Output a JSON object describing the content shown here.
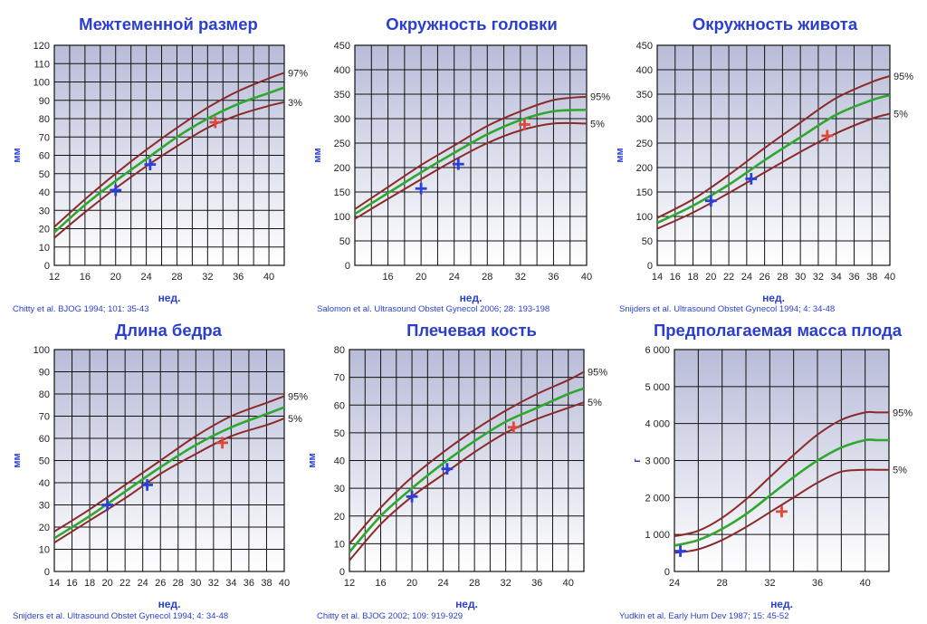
{
  "colors": {
    "title": "#2a3fd0",
    "axis_label": "#2a3fd0",
    "tick_text": "#222222",
    "grid": "#111111",
    "bg_top": "#b8bcd8",
    "bg_bottom": "#ffffff",
    "upper_curve": "#8b2a2a",
    "mid_curve": "#2fa82f",
    "lower_curve": "#8b2a2a",
    "marker_blue": "#2b3fe0",
    "marker_red": "#e0483a"
  },
  "chart_data": [
    {
      "type": "line",
      "title": "Межтеменной размер",
      "xlabel": "нед.",
      "ylabel": "мм",
      "citation": "Chitty et al. BJOG 1994; 101: 35-43",
      "xlim": [
        12,
        42
      ],
      "ylim": [
        0,
        120
      ],
      "x_ticks": [
        12,
        16,
        20,
        24,
        28,
        32,
        36,
        40
      ],
      "y_ticks": [
        0,
        10,
        20,
        30,
        40,
        50,
        60,
        70,
        80,
        90,
        100,
        110,
        120
      ],
      "grid": true,
      "series": [
        {
          "name": "97%",
          "role": "upper",
          "x": [
            12,
            16,
            20,
            24,
            28,
            32,
            36,
            40,
            42
          ],
          "y": [
            21,
            36,
            50,
            63,
            75,
            86,
            95,
            102,
            105
          ]
        },
        {
          "role": "mid",
          "x": [
            12,
            16,
            20,
            24,
            28,
            32,
            36,
            40,
            42
          ],
          "y": [
            18,
            33,
            46,
            58,
            70,
            80,
            88,
            94,
            97
          ]
        },
        {
          "name": "3%",
          "role": "lower",
          "x": [
            12,
            16,
            20,
            24,
            28,
            32,
            36,
            40,
            42
          ],
          "y": [
            15,
            29,
            42,
            54,
            65,
            75,
            82,
            87,
            89
          ]
        }
      ],
      "points": [
        {
          "x": 20,
          "y": 41,
          "color": "blue"
        },
        {
          "x": 24.5,
          "y": 55,
          "color": "blue"
        },
        {
          "x": 33,
          "y": 78,
          "color": "red"
        }
      ]
    },
    {
      "type": "line",
      "title": "Окружность головки",
      "xlabel": "нед.",
      "ylabel": "мм",
      "citation": "Salomon et al. Ultrasound Obstet Gynecol 2006; 28: 193-198",
      "xlim": [
        12,
        40
      ],
      "ylim": [
        0,
        450
      ],
      "x_ticks": [
        16,
        20,
        24,
        28,
        32,
        36,
        40
      ],
      "y_ticks": [
        0,
        50,
        100,
        150,
        200,
        250,
        300,
        350,
        400,
        450
      ],
      "grid": true,
      "series": [
        {
          "name": "95%",
          "role": "upper",
          "x": [
            12,
            16,
            20,
            24,
            28,
            32,
            36,
            40
          ],
          "y": [
            115,
            160,
            205,
            245,
            285,
            315,
            338,
            345
          ]
        },
        {
          "role": "mid",
          "x": [
            12,
            16,
            20,
            24,
            28,
            32,
            36,
            40
          ],
          "y": [
            105,
            148,
            190,
            230,
            268,
            297,
            315,
            318
          ]
        },
        {
          "name": "5%",
          "role": "lower",
          "x": [
            12,
            16,
            20,
            24,
            28,
            32,
            36,
            40
          ],
          "y": [
            95,
            136,
            176,
            215,
            250,
            276,
            290,
            290
          ]
        }
      ],
      "points": [
        {
          "x": 20,
          "y": 157,
          "color": "blue"
        },
        {
          "x": 24.5,
          "y": 207,
          "color": "blue"
        },
        {
          "x": 32.5,
          "y": 288,
          "color": "red"
        }
      ]
    },
    {
      "type": "line",
      "title": "Окружность живота",
      "xlabel": "нед.",
      "ylabel": "мм",
      "citation": "Snijders et al. Ultrasound Obstet Gynecol 1994; 4: 34-48",
      "xlim": [
        14,
        40
      ],
      "ylim": [
        0,
        450
      ],
      "x_ticks": [
        14,
        16,
        18,
        20,
        22,
        24,
        26,
        28,
        30,
        32,
        34,
        36,
        38,
        40
      ],
      "y_ticks": [
        0,
        50,
        100,
        150,
        200,
        250,
        300,
        350,
        400,
        450
      ],
      "grid": true,
      "series": [
        {
          "name": "95%",
          "role": "upper",
          "x": [
            14,
            18,
            22,
            26,
            30,
            34,
            38,
            40
          ],
          "y": [
            97,
            135,
            185,
            240,
            292,
            342,
            375,
            387
          ]
        },
        {
          "role": "mid",
          "x": [
            14,
            18,
            22,
            26,
            30,
            34,
            38,
            40
          ],
          "y": [
            87,
            122,
            165,
            215,
            262,
            308,
            338,
            348
          ]
        },
        {
          "name": "5%",
          "role": "lower",
          "x": [
            14,
            18,
            22,
            26,
            30,
            34,
            38,
            40
          ],
          "y": [
            75,
            108,
            148,
            190,
            232,
            270,
            300,
            310
          ]
        }
      ],
      "points": [
        {
          "x": 20,
          "y": 132,
          "color": "blue"
        },
        {
          "x": 24.5,
          "y": 177,
          "color": "blue"
        },
        {
          "x": 33,
          "y": 265,
          "color": "red"
        }
      ]
    },
    {
      "type": "line",
      "title": "Длина бедра",
      "xlabel": "нед.",
      "ylabel": "мм",
      "citation": "Snijders et al. Ultrasound Obstet Gynecol 1994; 4: 34-48",
      "xlim": [
        14,
        40
      ],
      "ylim": [
        0,
        100
      ],
      "x_ticks": [
        14,
        16,
        18,
        20,
        22,
        24,
        26,
        28,
        30,
        32,
        34,
        36,
        38,
        40
      ],
      "y_ticks": [
        0,
        10,
        20,
        30,
        40,
        50,
        60,
        70,
        80,
        90,
        100
      ],
      "grid": true,
      "series": [
        {
          "name": "95%",
          "role": "upper",
          "x": [
            14,
            18,
            22,
            26,
            30,
            34,
            38,
            40
          ],
          "y": [
            18,
            28,
            39,
            50,
            61,
            70,
            76,
            79
          ]
        },
        {
          "role": "mid",
          "x": [
            14,
            18,
            22,
            26,
            30,
            34,
            38,
            40
          ],
          "y": [
            15,
            25,
            36,
            47,
            57,
            65,
            71,
            74
          ]
        },
        {
          "name": "5%",
          "role": "lower",
          "x": [
            14,
            18,
            22,
            26,
            30,
            34,
            38,
            40
          ],
          "y": [
            13,
            23,
            33,
            44,
            53,
            61,
            66,
            69
          ]
        }
      ],
      "points": [
        {
          "x": 20,
          "y": 30,
          "color": "blue"
        },
        {
          "x": 24.5,
          "y": 39,
          "color": "blue"
        },
        {
          "x": 33,
          "y": 58,
          "color": "red"
        }
      ]
    },
    {
      "type": "line",
      "title": "Плечевая кость",
      "xlabel": "нед.",
      "ylabel": "мм",
      "citation": "Chitty et al. BJOG 2002; 109: 919-929",
      "xlim": [
        12,
        42
      ],
      "ylim": [
        0,
        80
      ],
      "x_ticks": [
        12,
        16,
        20,
        24,
        28,
        32,
        36,
        40
      ],
      "y_ticks": [
        0,
        10,
        20,
        30,
        40,
        50,
        60,
        70,
        80
      ],
      "grid": true,
      "series": [
        {
          "name": "95%",
          "role": "upper",
          "x": [
            12,
            16,
            20,
            24,
            28,
            32,
            36,
            40,
            42
          ],
          "y": [
            10,
            23,
            34,
            43,
            51,
            58,
            64,
            69,
            72
          ]
        },
        {
          "role": "mid",
          "x": [
            12,
            16,
            20,
            24,
            28,
            32,
            36,
            40,
            42
          ],
          "y": [
            7,
            20,
            30,
            39,
            47,
            54,
            59,
            64,
            66
          ]
        },
        {
          "name": "5%",
          "role": "lower",
          "x": [
            12,
            16,
            20,
            24,
            28,
            32,
            36,
            40,
            42
          ],
          "y": [
            4,
            17,
            27,
            35,
            43,
            50,
            55,
            59,
            61
          ]
        }
      ],
      "points": [
        {
          "x": 20,
          "y": 27,
          "color": "blue"
        },
        {
          "x": 24.5,
          "y": 37,
          "color": "blue"
        },
        {
          "x": 33,
          "y": 52,
          "color": "red"
        }
      ]
    },
    {
      "type": "line",
      "title": "Предполагаемая масса плода",
      "xlabel": "нед.",
      "ylabel": "г",
      "citation": "Yudkin et al. Early Hum Dev 1987; 15: 45-52",
      "xlim": [
        24,
        42
      ],
      "ylim": [
        0,
        6000
      ],
      "x_ticks": [
        24,
        28,
        32,
        36,
        40
      ],
      "y_ticks": [
        0,
        1000,
        2000,
        3000,
        4000,
        5000,
        6000
      ],
      "y_tick_labels": [
        "0",
        "1 000",
        "2 000",
        "3 000",
        "4 000",
        "5 000",
        "6 000"
      ],
      "grid": true,
      "series": [
        {
          "name": "95%",
          "role": "upper",
          "x": [
            24,
            26,
            28,
            30,
            32,
            34,
            36,
            38,
            40,
            41,
            42
          ],
          "y": [
            950,
            1100,
            1450,
            1950,
            2550,
            3150,
            3700,
            4100,
            4300,
            4300,
            4300
          ]
        },
        {
          "role": "mid",
          "x": [
            24,
            26,
            28,
            30,
            32,
            34,
            36,
            38,
            40,
            41,
            42
          ],
          "y": [
            700,
            850,
            1150,
            1550,
            2050,
            2550,
            3000,
            3350,
            3550,
            3550,
            3550
          ]
        },
        {
          "name": "5%",
          "role": "lower",
          "x": [
            24,
            26,
            28,
            30,
            32,
            34,
            36,
            38,
            40,
            41,
            42
          ],
          "y": [
            500,
            600,
            850,
            1200,
            1600,
            2000,
            2400,
            2700,
            2750,
            2750,
            2750
          ]
        }
      ],
      "points": [
        {
          "x": 24.5,
          "y": 550,
          "color": "blue"
        },
        {
          "x": 33,
          "y": 1620,
          "color": "red"
        }
      ]
    }
  ]
}
